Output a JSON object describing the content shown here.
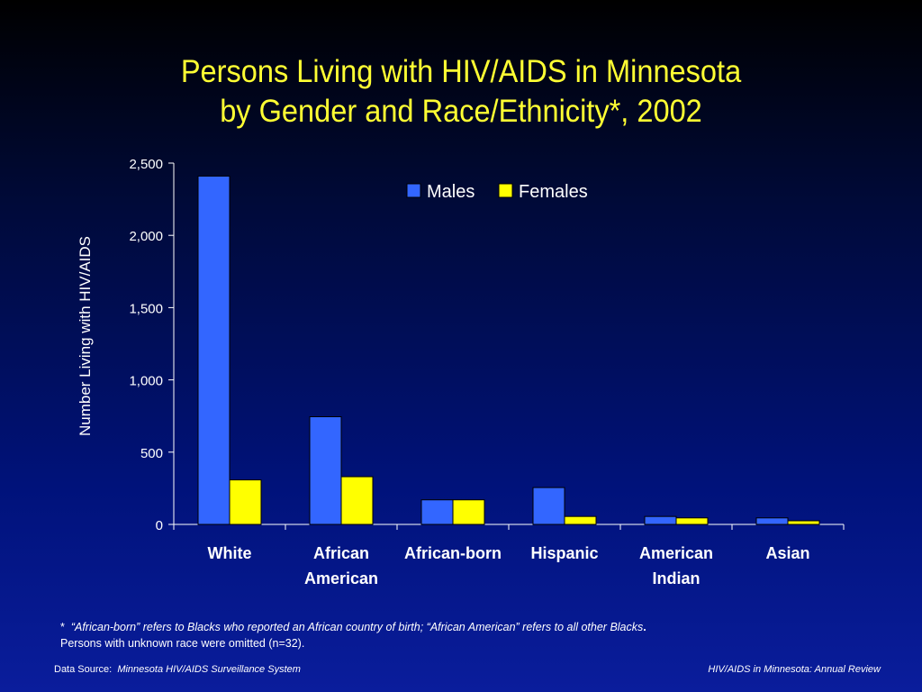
{
  "title_line1": "Persons Living with HIV/AIDS in Minnesota",
  "title_line2": "by Gender and Race/Ethnicity*, 2002",
  "chart_data": {
    "type": "bar",
    "title": "Persons Living with HIV/AIDS in Minnesota by Gender and Race/Ethnicity*, 2002",
    "ylabel": "Number Living with HIV/AIDS",
    "xlabel": "",
    "categories": [
      [
        "White"
      ],
      [
        "African",
        "American"
      ],
      [
        "African-born"
      ],
      [
        "Hispanic"
      ],
      [
        "American",
        "Indian"
      ],
      [
        "Asian"
      ]
    ],
    "series": [
      {
        "name": "Males",
        "color": "#3366ff",
        "values": [
          2410,
          745,
          170,
          255,
          55,
          45
        ]
      },
      {
        "name": "Females",
        "color": "#ffff00",
        "values": [
          308,
          330,
          170,
          55,
          45,
          25
        ]
      }
    ],
    "ylim": [
      0,
      2500
    ],
    "yticks": [
      0,
      500,
      1000,
      1500,
      2000,
      2500
    ],
    "ytick_labels": [
      "0",
      "500",
      "1,000",
      "1,500",
      "2,000",
      "2,500"
    ],
    "grid": false,
    "legend": "top-center"
  },
  "footnote": {
    "star": "*",
    "line1": "“African-born” refers to Blacks who reported an African country of birth; “African American” refers to all other Blacks",
    "period": ".",
    "line2": "Persons with unknown race were omitted (n=32)."
  },
  "source": {
    "label": "Data Source:",
    "name": "Minnesota HIV/AIDS Surveillance System",
    "right": "HIV/AIDS in Minnesota: Annual Review"
  }
}
